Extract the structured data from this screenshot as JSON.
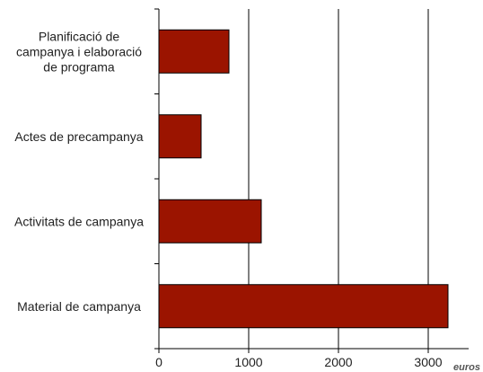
{
  "chart_data": {
    "type": "bar",
    "orientation": "horizontal",
    "categories": [
      [
        "Planificació de",
        "campanya i elaboració",
        "de programa"
      ],
      [
        "Actes de precampanya"
      ],
      [
        "Activitats de campanya"
      ],
      [
        "Material de campanya"
      ]
    ],
    "values": [
      780,
      470,
      1140,
      3220
    ],
    "xlim": [
      0,
      3450
    ],
    "xticks": [
      0,
      1000,
      2000,
      3000
    ],
    "grid": "vertical",
    "bar_color": "#9b1400",
    "currency_label": "euros",
    "title": "",
    "xlabel": "",
    "ylabel": ""
  }
}
